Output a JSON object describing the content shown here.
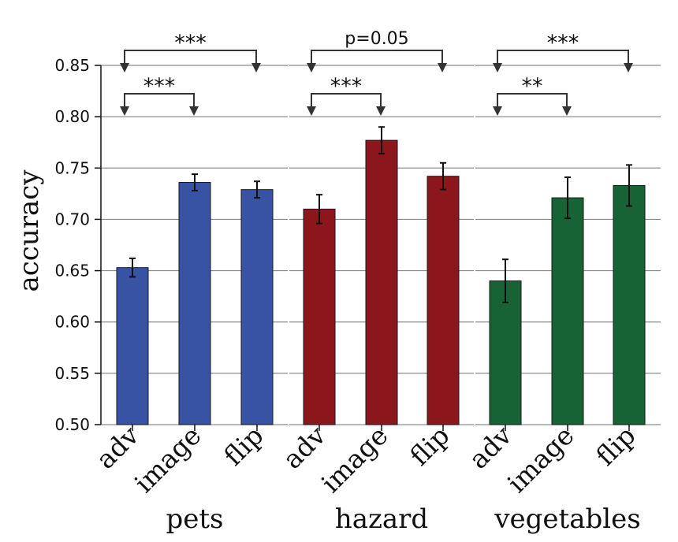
{
  "chart_data": {
    "type": "bar",
    "ylabel": "accuracy",
    "ylim": [
      0.5,
      0.85
    ],
    "yticks": [
      "0.50",
      "0.55",
      "0.60",
      "0.65",
      "0.70",
      "0.75",
      "0.80",
      "0.85"
    ],
    "grid": "horizontal",
    "groups": [
      {
        "name": "pets",
        "color": "#3953a4",
        "categories": [
          "adv",
          "image",
          "flip"
        ],
        "values": [
          0.653,
          0.736,
          0.729
        ],
        "errors": [
          0.009,
          0.008,
          0.008
        ],
        "comparisons": [
          {
            "from": "adv",
            "to": "flip",
            "label": "***",
            "level": "top"
          },
          {
            "from": "adv",
            "to": "image",
            "label": "***",
            "level": "bottom"
          }
        ]
      },
      {
        "name": "hazard",
        "color": "#8b171c",
        "categories": [
          "adv",
          "image",
          "flip"
        ],
        "values": [
          0.71,
          0.777,
          0.742
        ],
        "errors": [
          0.014,
          0.013,
          0.013
        ],
        "comparisons": [
          {
            "from": "adv",
            "to": "flip",
            "label": "p=0.05",
            "level": "top"
          },
          {
            "from": "adv",
            "to": "image",
            "label": "***",
            "level": "bottom"
          }
        ]
      },
      {
        "name": "vegetables",
        "color": "#176335",
        "categories": [
          "adv",
          "image",
          "flip"
        ],
        "values": [
          0.64,
          0.721,
          0.733
        ],
        "errors": [
          0.021,
          0.02,
          0.02
        ],
        "comparisons": [
          {
            "from": "adv",
            "to": "flip",
            "label": "***",
            "level": "top"
          },
          {
            "from": "adv",
            "to": "image",
            "label": "**",
            "level": "bottom"
          }
        ]
      }
    ]
  }
}
